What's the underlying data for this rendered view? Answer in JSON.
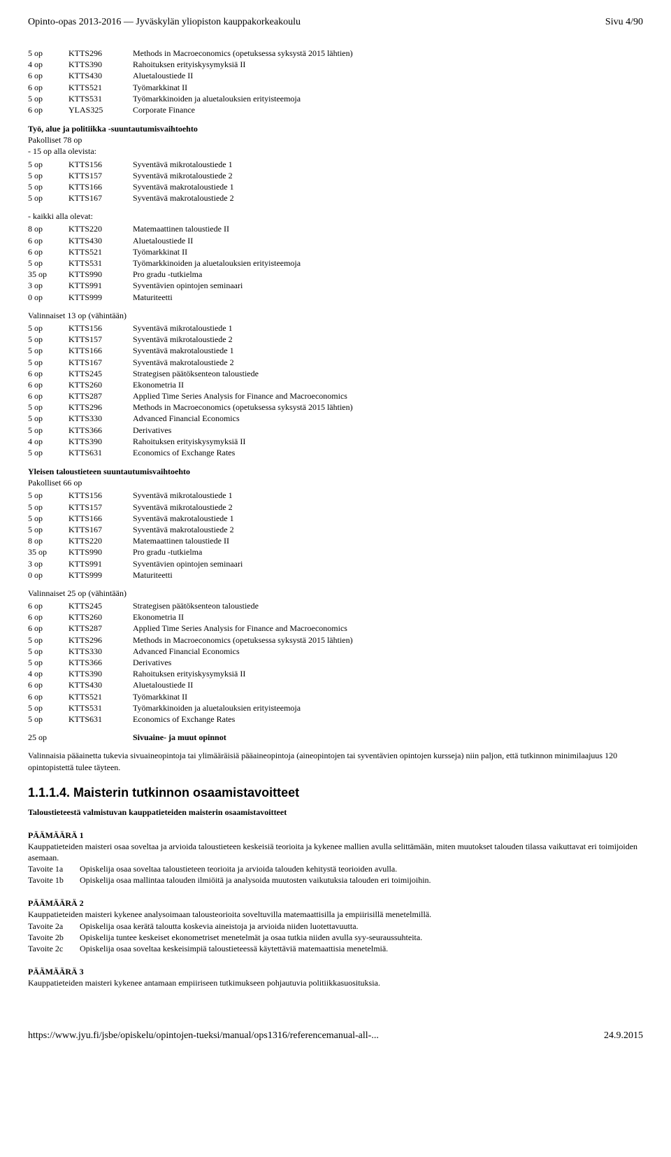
{
  "header": {
    "left": "Opinto-opas 2013-2016 — Jyväskylän yliopiston kauppakorkeakoulu",
    "right": "Sivu 4/90"
  },
  "block1": [
    {
      "op": "5 op",
      "code": "KTTS296",
      "title": "Methods in Macroeconomics (opetuksessa syksystä 2015 lähtien)"
    },
    {
      "op": "4 op",
      "code": "KTTS390",
      "title": "Rahoituksen erityiskysymyksiä II"
    },
    {
      "op": "6 op",
      "code": "KTTS430",
      "title": "Aluetaloustiede II"
    },
    {
      "op": "6 op",
      "code": "KTTS521",
      "title": "Työmarkkinat II"
    },
    {
      "op": "5 op",
      "code": "KTTS531",
      "title": "Työmarkkinoiden ja aluetalouksien erityisteemoja"
    },
    {
      "op": "6 op",
      "code": "YLAS325",
      "title": "Corporate Finance"
    }
  ],
  "sec2": {
    "title": "Työ, alue ja politiikka -suuntautumisvaihtoehto",
    "l1": "Pakolliset 78 op",
    "l2": "- 15 op alla olevista:",
    "rows1": [
      {
        "op": "5 op",
        "code": "KTTS156",
        "title": "Syventävä mikrotaloustiede 1"
      },
      {
        "op": "5 op",
        "code": "KTTS157",
        "title": "Syventävä mikrotaloustiede 2"
      },
      {
        "op": "5 op",
        "code": "KTTS166",
        "title": "Syventävä makrotaloustiede 1"
      },
      {
        "op": "5 op",
        "code": "KTTS167",
        "title": "Syventävä makrotaloustiede 2"
      }
    ],
    "l3": "- kaikki alla olevat:",
    "rows2": [
      {
        "op": "8 op",
        "code": "KTTS220",
        "title": "Matemaattinen taloustiede II"
      },
      {
        "op": "6 op",
        "code": "KTTS430",
        "title": "Aluetaloustiede II"
      },
      {
        "op": "6 op",
        "code": "KTTS521",
        "title": "Työmarkkinat II"
      },
      {
        "op": "5 op",
        "code": "KTTS531",
        "title": "Työmarkkinoiden ja aluetalouksien erityisteemoja"
      },
      {
        "op": "35 op",
        "code": "KTTS990",
        "title": "Pro gradu -tutkielma"
      },
      {
        "op": "3 op",
        "code": "KTTS991",
        "title": "Syventävien opintojen seminaari"
      },
      {
        "op": "0 op",
        "code": "KTTS999",
        "title": "Maturiteetti"
      }
    ],
    "optTitle": "Valinnaiset 13 op (vähintään)",
    "rows3": [
      {
        "op": "5 op",
        "code": "KTTS156",
        "title": "Syventävä mikrotaloustiede 1"
      },
      {
        "op": "5 op",
        "code": "KTTS157",
        "title": "Syventävä mikrotaloustiede 2"
      },
      {
        "op": "5 op",
        "code": "KTTS166",
        "title": "Syventävä makrotaloustiede 1"
      },
      {
        "op": "5 op",
        "code": "KTTS167",
        "title": "Syventävä makrotaloustiede 2"
      },
      {
        "op": "6 op",
        "code": "KTTS245",
        "title": "Strategisen päätöksenteon taloustiede"
      },
      {
        "op": "6 op",
        "code": "KTTS260",
        "title": "Ekonometria II"
      },
      {
        "op": "6 op",
        "code": "KTTS287",
        "title": "Applied Time Series Analysis for Finance and Macroeconomics"
      },
      {
        "op": "5 op",
        "code": "KTTS296",
        "title": "Methods in Macroeconomics (opetuksessa syksystä 2015 lähtien)"
      },
      {
        "op": "5 op",
        "code": "KTTS330",
        "title": "Advanced Financial Economics"
      },
      {
        "op": "5 op",
        "code": "KTTS366",
        "title": "Derivatives"
      },
      {
        "op": "4 op",
        "code": "KTTS390",
        "title": "Rahoituksen erityiskysymyksiä II"
      },
      {
        "op": "5 op",
        "code": "KTTS631",
        "title": "Economics of Exchange Rates"
      }
    ]
  },
  "sec3": {
    "title": "Yleisen taloustieteen suuntautumisvaihtoehto",
    "l1": "Pakolliset 66 op",
    "rows1": [
      {
        "op": "5 op",
        "code": "KTTS156",
        "title": "Syventävä mikrotaloustiede 1"
      },
      {
        "op": "5 op",
        "code": "KTTS157",
        "title": "Syventävä mikrotaloustiede 2"
      },
      {
        "op": "5 op",
        "code": "KTTS166",
        "title": "Syventävä makrotaloustiede 1"
      },
      {
        "op": "5 op",
        "code": "KTTS167",
        "title": "Syventävä makrotaloustiede 2"
      },
      {
        "op": "8 op",
        "code": "KTTS220",
        "title": "Matemaattinen taloustiede II"
      },
      {
        "op": "35 op",
        "code": "KTTS990",
        "title": "Pro gradu -tutkielma"
      },
      {
        "op": "3 op",
        "code": "KTTS991",
        "title": "Syventävien opintojen seminaari"
      },
      {
        "op": "0 op",
        "code": "KTTS999",
        "title": "Maturiteetti"
      }
    ],
    "optTitle": "Valinnaiset 25 op (vähintään)",
    "rows2": [
      {
        "op": "6 op",
        "code": "KTTS245",
        "title": "Strategisen päätöksenteon taloustiede"
      },
      {
        "op": "6 op",
        "code": "KTTS260",
        "title": "Ekonometria II"
      },
      {
        "op": "6 op",
        "code": "KTTS287",
        "title": "Applied Time Series Analysis for Finance and Macroeconomics"
      },
      {
        "op": "5 op",
        "code": "KTTS296",
        "title": "Methods in Macroeconomics (opetuksessa syksystä 2015 lähtien)"
      },
      {
        "op": "5 op",
        "code": "KTTS330",
        "title": "Advanced Financial Economics"
      },
      {
        "op": "5 op",
        "code": "KTTS366",
        "title": "Derivatives"
      },
      {
        "op": "4 op",
        "code": "KTTS390",
        "title": "Rahoituksen erityiskysymyksiä II"
      },
      {
        "op": "6 op",
        "code": "KTTS430",
        "title": "Aluetaloustiede II"
      },
      {
        "op": "6 op",
        "code": "KTTS521",
        "title": "Työmarkkinat II"
      },
      {
        "op": "5 op",
        "code": "KTTS531",
        "title": "Työmarkkinoiden ja aluetalouksien erityisteemoja"
      },
      {
        "op": "5 op",
        "code": "KTTS631",
        "title": "Economics of Exchange Rates"
      }
    ]
  },
  "sivuaine": {
    "row": {
      "op": "25 op",
      "code": "",
      "title": "Sivuaine- ja muut opinnot"
    },
    "para": "Valinnaisia pääainetta tukevia sivuaineopintoja tai ylimääräisiä pääaineopintoja (aineopintojen tai syventävien opintojen kursseja) niin paljon, että tutkinnon minimilaajuus 120 opintopistettä tulee täyteen."
  },
  "heading": "1.1.1.4. Maisterin tutkinnon osaamistavoitteet",
  "subBold": "Taloustieteestä valmistuvan kauppatieteiden maisterin osaamistavoitteet",
  "goals": [
    {
      "title": "PÄÄMÄÄRÄ 1",
      "intro": "Kauppatieteiden maisteri osaa soveltaa ja arvioida taloustieteen keskeisiä teorioita ja kykenee mallien avulla selittämään, miten muutokset talouden tilassa vaikuttavat eri toimijoiden asemaan.",
      "rows": [
        {
          "a": "Tavoite 1a",
          "b": "Opiskelija osaa soveltaa taloustieteen teorioita ja arvioida talouden kehitystä teorioiden avulla."
        },
        {
          "a": "Tavoite 1b",
          "b": "Opiskelija osaa mallintaa talouden ilmiöitä ja analysoida muutosten vaikutuksia talouden eri toimijoihin."
        }
      ]
    },
    {
      "title": "PÄÄMÄÄRÄ 2",
      "intro": "Kauppatieteiden maisteri kykenee analysoimaan talousteorioita soveltuvilla matemaattisilla ja empiirisillä menetelmillä.",
      "rows": [
        {
          "a": "Tavoite 2a",
          "b": "Opiskelija osaa kerätä taloutta koskevia aineistoja ja arvioida niiden luotettavuutta."
        },
        {
          "a": "Tavoite 2b",
          "b": "Opiskelija tuntee keskeiset ekonometriset menetelmät ja osaa tutkia niiden avulla syy-seuraussuhteita."
        },
        {
          "a": "Tavoite 2c",
          "b": "Opiskelija osaa soveltaa keskeisimpiä taloustieteessä käytettäviä matemaattisia menetelmiä."
        }
      ]
    },
    {
      "title": "PÄÄMÄÄRÄ 3",
      "intro": "Kauppatieteiden maisteri kykenee antamaan empiiriseen tutkimukseen pohjautuvia politiikkasuosituksia.",
      "rows": []
    }
  ],
  "footer": {
    "left": "https://www.jyu.fi/jsbe/opiskelu/opintojen-tueksi/manual/ops1316/referencemanual-all-...",
    "right": "24.9.2015"
  }
}
